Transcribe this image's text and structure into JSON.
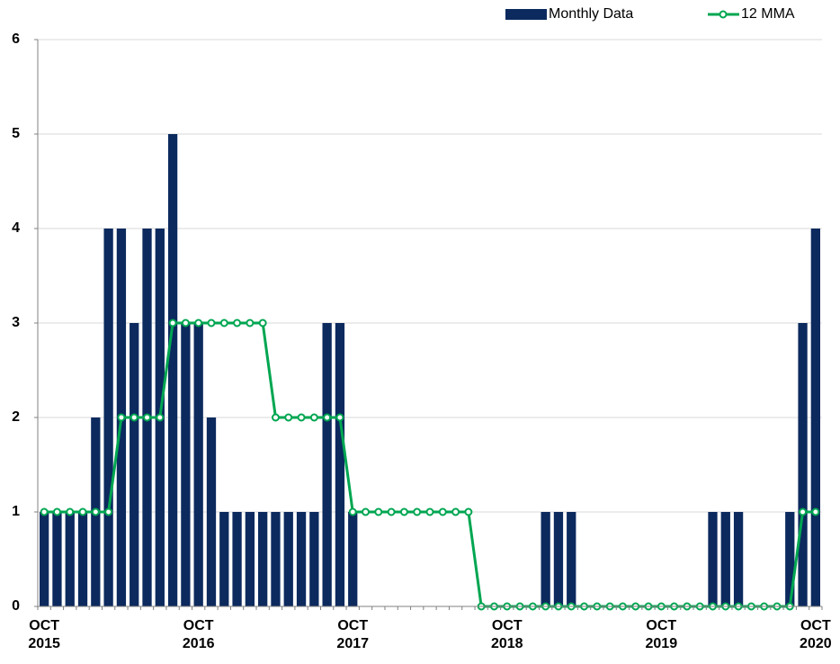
{
  "chart_data": {
    "type": "bar_line",
    "categories": [
      "OCT 2015",
      null,
      null,
      null,
      null,
      null,
      null,
      null,
      null,
      null,
      null,
      null,
      "OCT 2016",
      null,
      null,
      null,
      null,
      null,
      null,
      null,
      null,
      null,
      null,
      null,
      "OCT 2017",
      null,
      null,
      null,
      null,
      null,
      null,
      null,
      null,
      null,
      null,
      null,
      "OCT 2018",
      null,
      null,
      null,
      null,
      null,
      null,
      null,
      null,
      null,
      null,
      null,
      "OCT 2019",
      null,
      null,
      null,
      null,
      null,
      null,
      null,
      null,
      null,
      null,
      null,
      "OCT 2020"
    ],
    "series": [
      {
        "name": "Monthly Data",
        "type": "bar",
        "color": "#0c2a5e",
        "values": [
          1,
          1,
          1,
          1,
          2,
          4,
          4,
          3,
          4,
          4,
          5,
          3,
          3,
          2,
          1,
          1,
          1,
          1,
          1,
          1,
          1,
          1,
          3,
          3,
          1,
          0,
          0,
          0,
          0,
          0,
          0,
          0,
          0,
          0,
          0,
          0,
          0,
          0,
          0,
          1,
          1,
          1,
          0,
          0,
          0,
          0,
          0,
          0,
          0,
          0,
          0,
          0,
          1,
          1,
          1,
          0,
          0,
          0,
          1,
          3,
          4
        ]
      },
      {
        "name": "12 MMA",
        "type": "line",
        "color": "#00a651",
        "values": [
          1,
          1,
          1,
          1,
          1,
          1,
          2,
          2,
          2,
          2,
          3,
          3,
          3,
          3,
          3,
          3,
          3,
          3,
          2,
          2,
          2,
          2,
          2,
          2,
          1,
          1,
          1,
          1,
          1,
          1,
          1,
          1,
          1,
          1,
          0,
          0,
          0,
          0,
          0,
          0,
          0,
          0,
          0,
          0,
          0,
          0,
          0,
          0,
          0,
          0,
          0,
          0,
          0,
          0,
          0,
          0,
          0,
          0,
          0,
          1,
          1
        ]
      }
    ],
    "ylim": [
      0,
      6
    ],
    "yticks": [
      0,
      1,
      2,
      3,
      4,
      5,
      6
    ],
    "grid": true,
    "legend": "top-right"
  }
}
